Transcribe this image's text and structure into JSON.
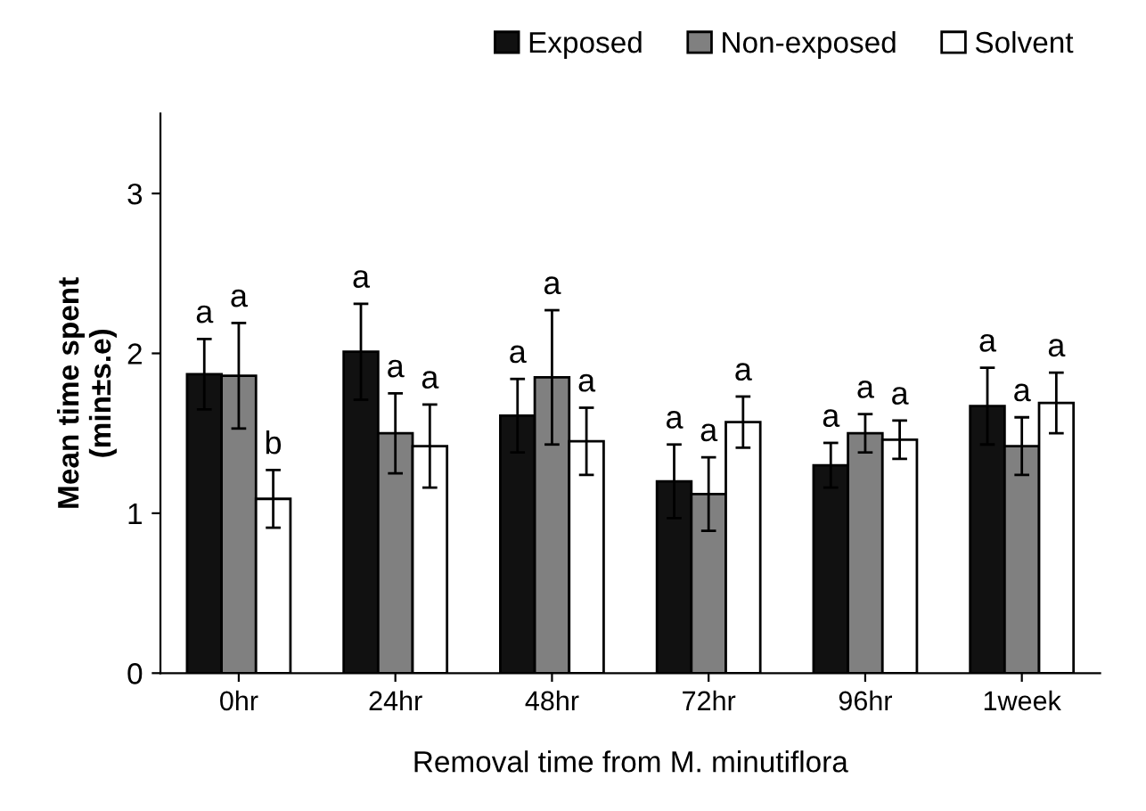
{
  "chart_data": {
    "type": "bar",
    "xlabel": "Removal time from M. minutiflora",
    "ylabel": "Mean time spent\n(min±s.e)",
    "categories": [
      "0hr",
      "24hr",
      "48hr",
      "72hr",
      "96hr",
      "1week"
    ],
    "series": [
      {
        "name": "Exposed",
        "color": "#111111",
        "values": [
          1.87,
          2.01,
          1.61,
          1.2,
          1.3,
          1.67
        ],
        "errors": [
          0.22,
          0.3,
          0.23,
          0.23,
          0.14,
          0.24
        ],
        "value_labels": [
          "a",
          "a",
          "a",
          "a",
          "a",
          "a"
        ]
      },
      {
        "name": "Non-exposed",
        "color": "#808080",
        "values": [
          1.86,
          1.5,
          1.85,
          1.12,
          1.5,
          1.42
        ],
        "errors": [
          0.33,
          0.25,
          0.42,
          0.23,
          0.12,
          0.18
        ],
        "value_labels": [
          "a",
          "a",
          "a",
          "a",
          "a",
          "a"
        ]
      },
      {
        "name": "Solvent",
        "color": "#ffffff",
        "values": [
          1.09,
          1.42,
          1.45,
          1.57,
          1.46,
          1.69
        ],
        "errors": [
          0.18,
          0.26,
          0.21,
          0.16,
          0.12,
          0.19
        ],
        "value_labels": [
          "b",
          "a",
          "a",
          "a",
          "a",
          "a"
        ]
      }
    ],
    "ylim": [
      0,
      3.5
    ],
    "yticks": [
      0,
      1,
      2,
      3
    ],
    "grid": false,
    "legend": "top right"
  }
}
